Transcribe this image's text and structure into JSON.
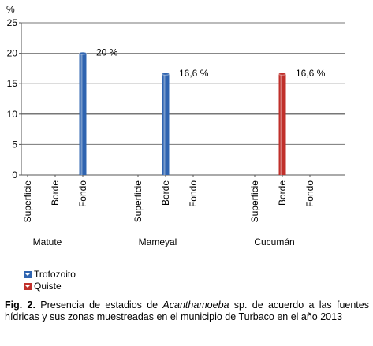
{
  "chart_data": {
    "type": "bar",
    "y_unit_label": "%",
    "ylim": [
      0,
      25
    ],
    "yticks": [
      "0",
      "5",
      "10",
      "15",
      "20",
      "25"
    ],
    "grid": true,
    "groups": [
      {
        "name": "Matute",
        "zones": [
          "Superficie",
          "Borde",
          "Fondo"
        ]
      },
      {
        "name": "Mameyal",
        "zones": [
          "Superficie",
          "Borde",
          "Fondo"
        ]
      },
      {
        "name": "Cucumán",
        "zones": [
          "Superficie",
          "Borde",
          "Fondo"
        ]
      }
    ],
    "series": [
      {
        "name": "Trofozoito",
        "color": "#2f64b0",
        "values": [
          [
            0,
            0,
            20
          ],
          [
            0,
            16.6,
            0
          ],
          [
            0,
            0,
            0
          ]
        ]
      },
      {
        "name": "Quiste",
        "color": "#c0302b",
        "values": [
          [
            0,
            0,
            0
          ],
          [
            0,
            0,
            0
          ],
          [
            0,
            16.6,
            0
          ]
        ]
      }
    ],
    "data_labels": [
      "20 %",
      "16,6 %",
      "16,6 %"
    ],
    "legend_position": "bottom-left"
  },
  "caption": {
    "figure_label": "Fig. 2.",
    "text_before": " Presencia de estadios de ",
    "species": "Acanthamoeba",
    "text_after": " sp. de acuerdo a las fuentes hídricas y sus zonas muestreadas en el municipio de Turbaco en el año 2013"
  }
}
